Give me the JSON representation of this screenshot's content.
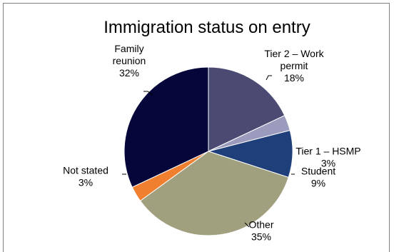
{
  "chart_data": {
    "type": "pie",
    "title": "Immigration status on entry",
    "slices": [
      {
        "name": "Tier 2 – Work permit",
        "label_lines": [
          "Tier 2 – Work",
          "permit"
        ],
        "pct_text": "18%",
        "value": 18,
        "color": "#4a4a72"
      },
      {
        "name": "Tier 1 – HSMP",
        "label_lines": [
          "Tier 1 – HSMP"
        ],
        "pct_text": "3%",
        "value": 3,
        "color": "#9b9bbd"
      },
      {
        "name": "Student",
        "label_lines": [
          "Student"
        ],
        "pct_text": "9%",
        "value": 9,
        "color": "#1f3f7a"
      },
      {
        "name": "Other",
        "label_lines": [
          "Other"
        ],
        "pct_text": "35%",
        "value": 35,
        "color": "#a0a07e"
      },
      {
        "name": "Not stated",
        "label_lines": [
          "Not stated"
        ],
        "pct_text": "3%",
        "value": 3,
        "color": "#f08030"
      },
      {
        "name": "Family reunion",
        "label_lines": [
          "Family",
          "reunion"
        ],
        "pct_text": "32%",
        "value": 32,
        "color": "#06063a"
      }
    ],
    "start_angle_deg": 0,
    "legend": "none"
  }
}
